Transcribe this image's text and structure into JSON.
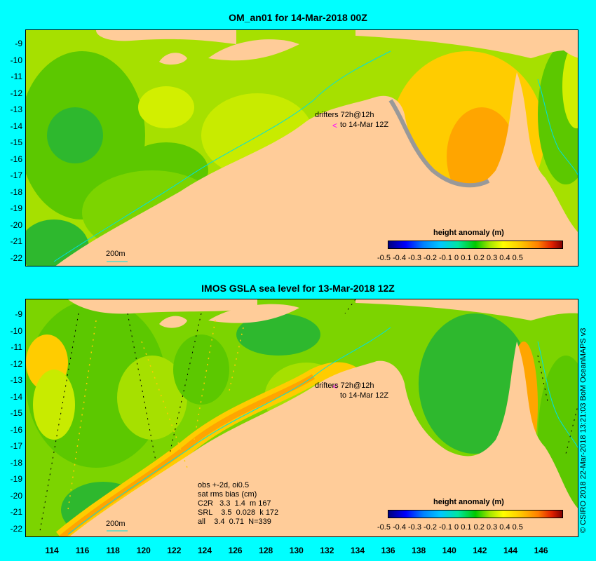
{
  "top": {
    "title": "OM_an01 for 14-Mar-2018 00Z",
    "drifters_line1": "drifters 72h@12h",
    "drifters_line2": "to 14-Mar 12Z",
    "contour_label": "200m",
    "legend_title": "height anomaly (m)"
  },
  "bottom": {
    "title": "IMOS GSLA sea level  for 13-Mar-2018 12Z",
    "drifters_line1": "drifters 72h@12h",
    "drifters_line2": "to 14-Mar 12Z",
    "contour_label": "200m",
    "legend_title": "height anomaly (m)",
    "stats": [
      "obs +-2d, oi0.5",
      "sat rms bias (cm)",
      "C2R   3.3  1.4  m 167",
      "SRL    3.5  0.028  k 172",
      "all    3.4  0.71  N=339"
    ]
  },
  "colorbar_ticks": "-0.5 -0.4 -0.3 -0.2 -0.1   0   0.1  0.2  0.3  0.4  0.5",
  "lat_labels": [
    "-9",
    "-10",
    "-11",
    "-12",
    "-13",
    "-14",
    "-15",
    "-16",
    "-17",
    "-18",
    "-19",
    "-20",
    "-21",
    "-22"
  ],
  "lon_labels": [
    "114",
    "116",
    "118",
    "120",
    "122",
    "124",
    "126",
    "128",
    "130",
    "132",
    "134",
    "136",
    "138",
    "140",
    "142",
    "144",
    "146"
  ],
  "credit": "© CSIRO 2018   22-Mar-2018 13:21:03 BoM OceanMAPS v3",
  "colors": {
    "frame": "#00ffff",
    "land": "#ffcc99",
    "shelf": "#999999",
    "coast_contour": "#00e0e0",
    "drifter_arrow": "#ff00ff"
  }
}
